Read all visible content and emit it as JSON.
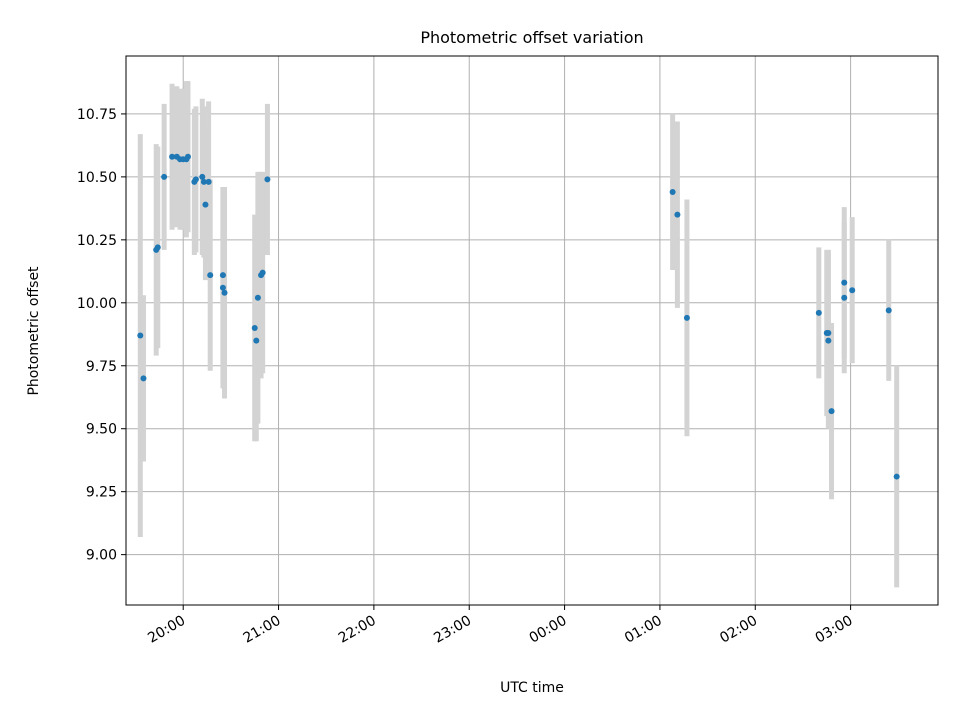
{
  "chart_data": {
    "type": "scatter",
    "title": "Photometric offset variation",
    "xlabel": "UTC time",
    "ylabel": "Photometric offset",
    "x_axis_kind": "time",
    "xlim": [
      "19:24",
      "03:55"
    ],
    "ylim": [
      8.8,
      10.98
    ],
    "x_ticks": [
      "20:00",
      "21:00",
      "22:00",
      "23:00",
      "00:00",
      "01:00",
      "02:00",
      "03:00"
    ],
    "y_ticks": [
      "9.00",
      "9.25",
      "9.50",
      "9.75",
      "10.00",
      "10.25",
      "10.50",
      "10.75"
    ],
    "grid": true,
    "colors": {
      "point": "#1f77b4",
      "errorbar": "#d3d3d3",
      "grid": "#b0b0b0"
    },
    "points": [
      {
        "time": "19:33",
        "y": 9.87,
        "err": 0.8
      },
      {
        "time": "19:35",
        "y": 9.7,
        "err": 0.33
      },
      {
        "time": "19:43",
        "y": 10.21,
        "err": 0.42
      },
      {
        "time": "19:44",
        "y": 10.22,
        "err": 0.4
      },
      {
        "time": "19:48",
        "y": 10.5,
        "err": 0.29
      },
      {
        "time": "19:53",
        "y": 10.58,
        "err": 0.29
      },
      {
        "time": "19:56",
        "y": 10.58,
        "err": 0.28
      },
      {
        "time": "19:58",
        "y": 10.57,
        "err": 0.28
      },
      {
        "time": "20:00",
        "y": 10.57,
        "err": 0.28
      },
      {
        "time": "20:02",
        "y": 10.57,
        "err": 0.31
      },
      {
        "time": "20:03",
        "y": 10.58,
        "err": 0.3
      },
      {
        "time": "20:07",
        "y": 10.48,
        "err": 0.29
      },
      {
        "time": "20:08",
        "y": 10.49,
        "err": 0.29
      },
      {
        "time": "20:12",
        "y": 10.5,
        "err": 0.31
      },
      {
        "time": "20:13",
        "y": 10.48,
        "err": 0.3
      },
      {
        "time": "20:14",
        "y": 10.39,
        "err": 0.3
      },
      {
        "time": "20:16",
        "y": 10.48,
        "err": 0.32
      },
      {
        "time": "20:17",
        "y": 10.11,
        "err": 0.38
      },
      {
        "time": "20:25",
        "y": 10.06,
        "err": 0.4
      },
      {
        "time": "20:26",
        "y": 10.04,
        "err": 0.42
      },
      {
        "time": "20:25",
        "y": 10.11,
        "err": 0.35
      },
      {
        "time": "20:45",
        "y": 9.9,
        "err": 0.45
      },
      {
        "time": "20:46",
        "y": 9.85,
        "err": 0.4
      },
      {
        "time": "20:47",
        "y": 10.02,
        "err": 0.5
      },
      {
        "time": "20:49",
        "y": 10.11,
        "err": 0.41
      },
      {
        "time": "20:50",
        "y": 10.12,
        "err": 0.4
      },
      {
        "time": "20:53",
        "y": 10.49,
        "err": 0.3
      },
      {
        "time": "01:08",
        "y": 10.44,
        "err": 0.31
      },
      {
        "time": "01:11",
        "y": 10.35,
        "err": 0.37
      },
      {
        "time": "01:17",
        "y": 9.94,
        "err": 0.47
      },
      {
        "time": "02:40",
        "y": 9.96,
        "err": 0.26
      },
      {
        "time": "02:45",
        "y": 9.88,
        "err": 0.33
      },
      {
        "time": "02:46",
        "y": 9.85,
        "err": 0.35
      },
      {
        "time": "02:46",
        "y": 9.88,
        "err": 0.33
      },
      {
        "time": "02:48",
        "y": 9.57,
        "err": 0.35
      },
      {
        "time": "02:56",
        "y": 10.02,
        "err": 0.3
      },
      {
        "time": "02:56",
        "y": 10.08,
        "err": 0.3
      },
      {
        "time": "03:01",
        "y": 10.05,
        "err": 0.29
      },
      {
        "time": "03:24",
        "y": 9.97,
        "err": 0.28
      },
      {
        "time": "03:29",
        "y": 9.31,
        "err": 0.44
      }
    ]
  }
}
